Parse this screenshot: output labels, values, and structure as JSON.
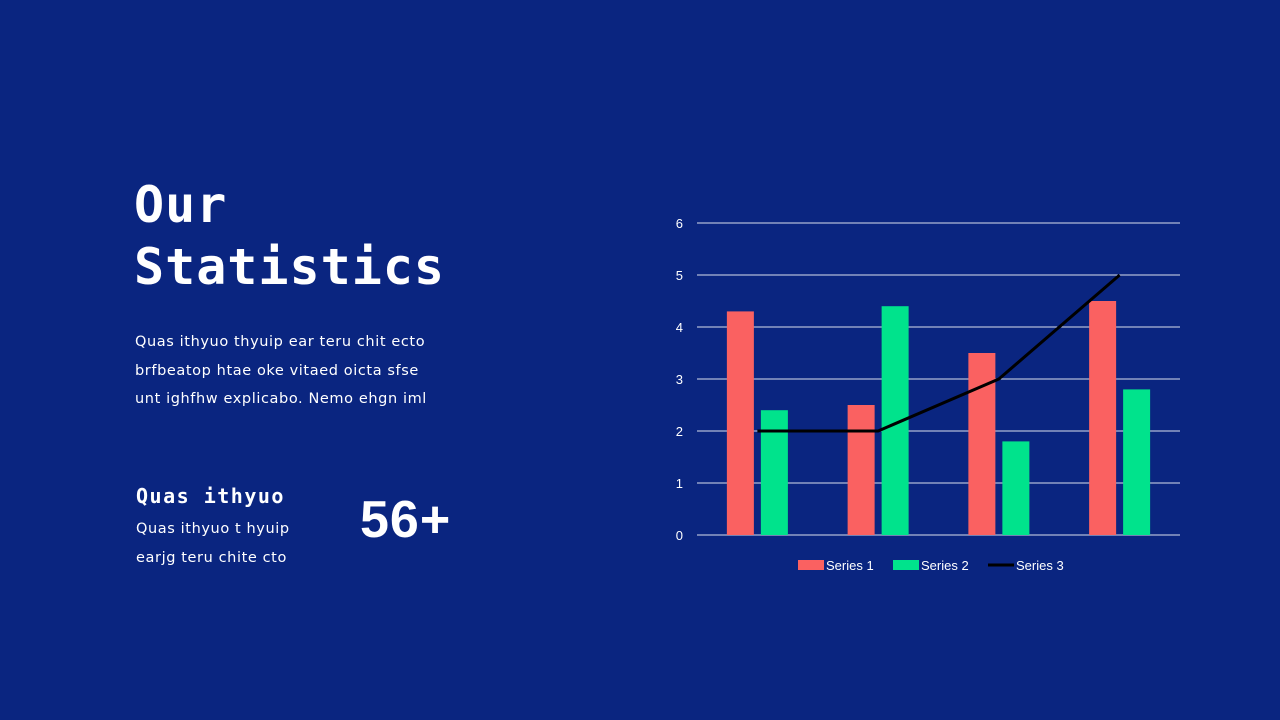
{
  "slide": {
    "title_line1": "Our",
    "title_line2": "Statistics",
    "body_lines": [
      "Quas ithyuo thyuip ear teru chit ecto",
      "brfbeatop htae oke vitaed oicta sfse",
      "unt ighfhw explicabo. Nemo ehgn iml"
    ],
    "stat": {
      "heading": "Quas ithyuo",
      "lines": [
        "Quas ithyuo t hyuip",
        "earjg teru chite cto"
      ],
      "value": "56+"
    }
  },
  "colors": {
    "background": "#0a2580",
    "series1": "#fa6161",
    "series2": "#00e38c",
    "series3": "#000000",
    "gridline": "#ffffff"
  },
  "chart_data": {
    "type": "bar",
    "categories": [
      "",
      "",
      "",
      ""
    ],
    "series": [
      {
        "name": "Series 1",
        "type": "bar",
        "values": [
          4.3,
          2.5,
          3.5,
          4.5
        ]
      },
      {
        "name": "Series 2",
        "type": "bar",
        "values": [
          2.4,
          4.4,
          1.8,
          2.8
        ]
      },
      {
        "name": "Series 3",
        "type": "line",
        "values": [
          2,
          2,
          3,
          5
        ]
      }
    ],
    "yticks": [
      "0",
      "1",
      "2",
      "3",
      "4",
      "5",
      "6"
    ],
    "ylim": [
      0,
      6
    ],
    "grid": true,
    "legend": "bottom"
  }
}
